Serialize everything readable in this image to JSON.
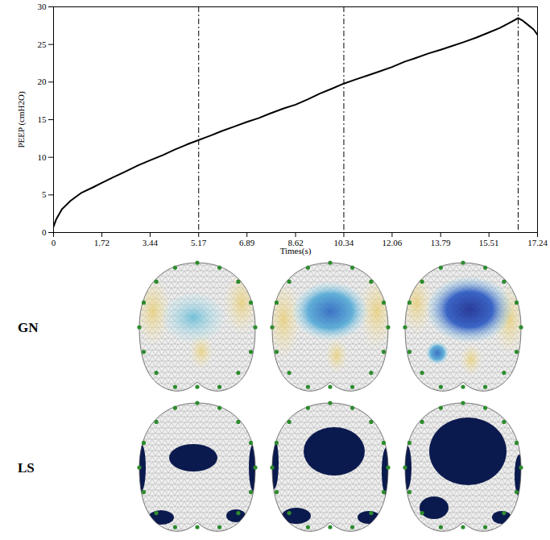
{
  "chart_data": {
    "type": "line",
    "x_label": "Times(s)",
    "y_label": "PEEP (cmH2O)",
    "x": [
      0,
      0.1,
      0.3,
      0.6,
      1.0,
      1.4,
      1.72,
      2.1,
      2.5,
      3.0,
      3.44,
      3.9,
      4.3,
      4.75,
      5.17,
      5.6,
      6.0,
      6.45,
      6.89,
      7.3,
      7.7,
      8.2,
      8.62,
      9.05,
      9.5,
      9.9,
      10.34,
      10.8,
      11.2,
      11.6,
      12.06,
      12.5,
      12.9,
      13.35,
      13.79,
      14.2,
      14.6,
      15.05,
      15.51,
      15.9,
      16.2,
      16.4,
      16.55,
      16.7,
      16.9,
      17.1,
      17.24
    ],
    "values": [
      0.8,
      1.8,
      3.1,
      4.2,
      5.3,
      6.0,
      6.6,
      7.3,
      8.0,
      8.9,
      9.6,
      10.3,
      11.0,
      11.7,
      12.3,
      12.9,
      13.5,
      14.1,
      14.7,
      15.2,
      15.8,
      16.5,
      17.0,
      17.7,
      18.5,
      19.1,
      19.8,
      20.4,
      20.9,
      21.4,
      22.0,
      22.7,
      23.2,
      23.8,
      24.3,
      24.8,
      25.3,
      25.9,
      26.6,
      27.2,
      27.8,
      28.2,
      28.5,
      28.2,
      27.6,
      27.0,
      26.3
    ],
    "color": "#000000",
    "xlim": [
      0,
      17.24
    ],
    "xticks": [
      0,
      1.72,
      3.44,
      5.17,
      6.89,
      8.62,
      10.34,
      12.06,
      13.79,
      15.51,
      17.24
    ],
    "ylim": [
      0,
      30
    ],
    "yticks": [
      0,
      5,
      10,
      15,
      20,
      25,
      30
    ],
    "reference_lines": [
      5.17,
      10.34,
      16.55
    ],
    "grid": false
  },
  "image_rows": [
    "GN",
    "LS"
  ]
}
